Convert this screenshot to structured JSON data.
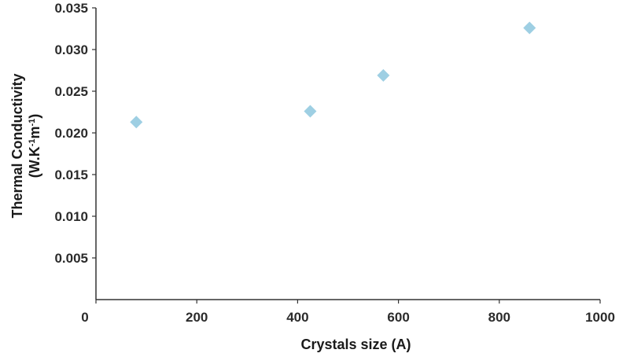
{
  "chart_data": {
    "type": "scatter",
    "title": "",
    "xlabel": "Crystals size (A)",
    "ylabel_line1": "Thermal Conductivity",
    "ylabel_line2": "(W.K-1m-1)",
    "xlim": [
      0,
      1000
    ],
    "ylim": [
      0,
      0.035
    ],
    "x_ticks": [
      "0",
      "200",
      "400",
      "600",
      "800",
      "1000"
    ],
    "y_ticks": [
      "0.035",
      "0.030",
      "0.025",
      "0.020",
      "0.015",
      "0.010",
      "0.005"
    ],
    "grid": false,
    "legend": "none",
    "marker": "diamond",
    "marker_color": "#9ecfe3",
    "series": [
      {
        "x": [
          80,
          425,
          570,
          860
        ],
        "y": [
          0.0213,
          0.0226,
          0.0269,
          0.0326
        ]
      }
    ]
  }
}
